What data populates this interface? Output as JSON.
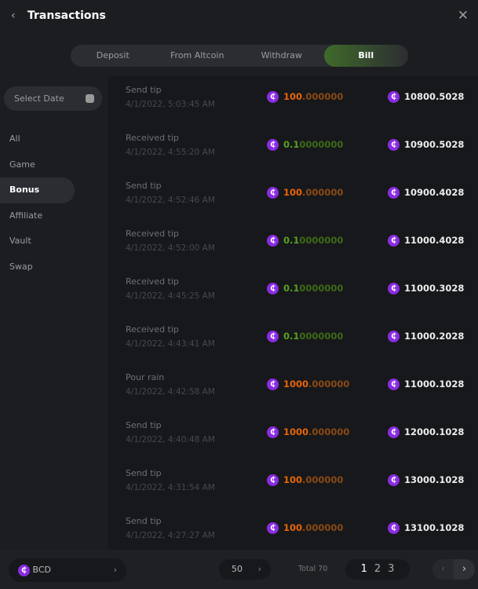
{
  "header": {
    "title": "Transactions",
    "back_icon": "‹",
    "close_icon": "✕"
  },
  "tabs": [
    {
      "label": "Deposit"
    },
    {
      "label": "From Altcoin"
    },
    {
      "label": "Withdraw"
    },
    {
      "label": "Bill",
      "active": true
    }
  ],
  "sidebar": {
    "date_placeholder": "Select Date",
    "items": [
      {
        "label": "All"
      },
      {
        "label": "Game"
      },
      {
        "label": "Bonus",
        "active": true
      },
      {
        "label": "Affiliate"
      },
      {
        "label": "Vault"
      },
      {
        "label": "Swap"
      }
    ]
  },
  "colors": {
    "coin": "#8a2be2",
    "send": "#e8650a",
    "receive": "#5aa01e",
    "active_tab": "#3f6a2a"
  },
  "rows": [
    {
      "title": "Send tip",
      "time": "4/1/2022, 5:03:45 AM",
      "amount_main": "100",
      "amount_rest": ".000000",
      "type": "orange",
      "balance": "10800.5028"
    },
    {
      "title": "Received tip",
      "time": "4/1/2022, 4:55:20 AM",
      "amount_main": "0.1",
      "amount_rest": "0000000",
      "type": "green",
      "balance": "10900.5028"
    },
    {
      "title": "Send tip",
      "time": "4/1/2022, 4:52:46 AM",
      "amount_main": "100",
      "amount_rest": ".000000",
      "type": "orange",
      "balance": "10900.4028"
    },
    {
      "title": "Received tip",
      "time": "4/1/2022, 4:52:00 AM",
      "amount_main": "0.1",
      "amount_rest": "0000000",
      "type": "green",
      "balance": "11000.4028"
    },
    {
      "title": "Received tip",
      "time": "4/1/2022, 4:45:25 AM",
      "amount_main": "0.1",
      "amount_rest": "0000000",
      "type": "green",
      "balance": "11000.3028"
    },
    {
      "title": "Received tip",
      "time": "4/1/2022, 4:43:41 AM",
      "amount_main": "0.1",
      "amount_rest": "0000000",
      "type": "green",
      "balance": "11000.2028"
    },
    {
      "title": "Pour rain",
      "time": "4/1/2022, 4:42:58 AM",
      "amount_main": "1000",
      "amount_rest": ".000000",
      "type": "orange",
      "balance": "11000.1028"
    },
    {
      "title": "Send tip",
      "time": "4/1/2022, 4:40:48 AM",
      "amount_main": "1000",
      "amount_rest": ".000000",
      "type": "orange",
      "balance": "12000.1028"
    },
    {
      "title": "Send tip",
      "time": "4/1/2022, 4:31:54 AM",
      "amount_main": "100",
      "amount_rest": ".000000",
      "type": "orange",
      "balance": "13000.1028"
    },
    {
      "title": "Send tip",
      "time": "4/1/2022, 4:27:27 AM",
      "amount_main": "100",
      "amount_rest": ".000000",
      "type": "orange",
      "balance": "13100.1028"
    }
  ],
  "footer": {
    "currency": "BCD",
    "page_size": "50",
    "total": "Total 70",
    "pages": [
      "1",
      "2",
      "3"
    ],
    "current_page": "1",
    "prev": "‹",
    "next": "›"
  },
  "coin_glyph": "₵"
}
